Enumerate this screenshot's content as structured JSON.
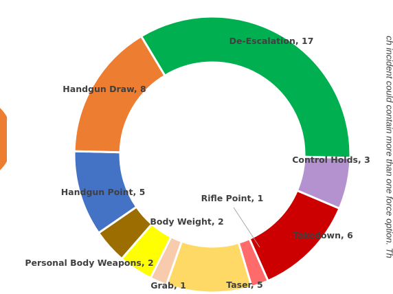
{
  "chart_data": {
    "type": "donut",
    "categories": [
      "De-Escalation",
      "Control Holds",
      "Takedown",
      "Rifle Point",
      "Taser",
      "Grab",
      "Body Weight",
      "Personal Body Weapons",
      "Handgun Point",
      "Handgun Draw"
    ],
    "values": [
      17,
      3,
      6,
      1,
      5,
      1,
      2,
      2,
      5,
      8
    ],
    "colors": [
      "#00b050",
      "#b491cf",
      "#cc0000",
      "#ff6b6b",
      "#ffd966",
      "#f8cbad",
      "#ffff00",
      "#9c6d00",
      "#4472c4",
      "#ed7d31"
    ],
    "note": "ch incident could contain more than one force option. Th"
  }
}
